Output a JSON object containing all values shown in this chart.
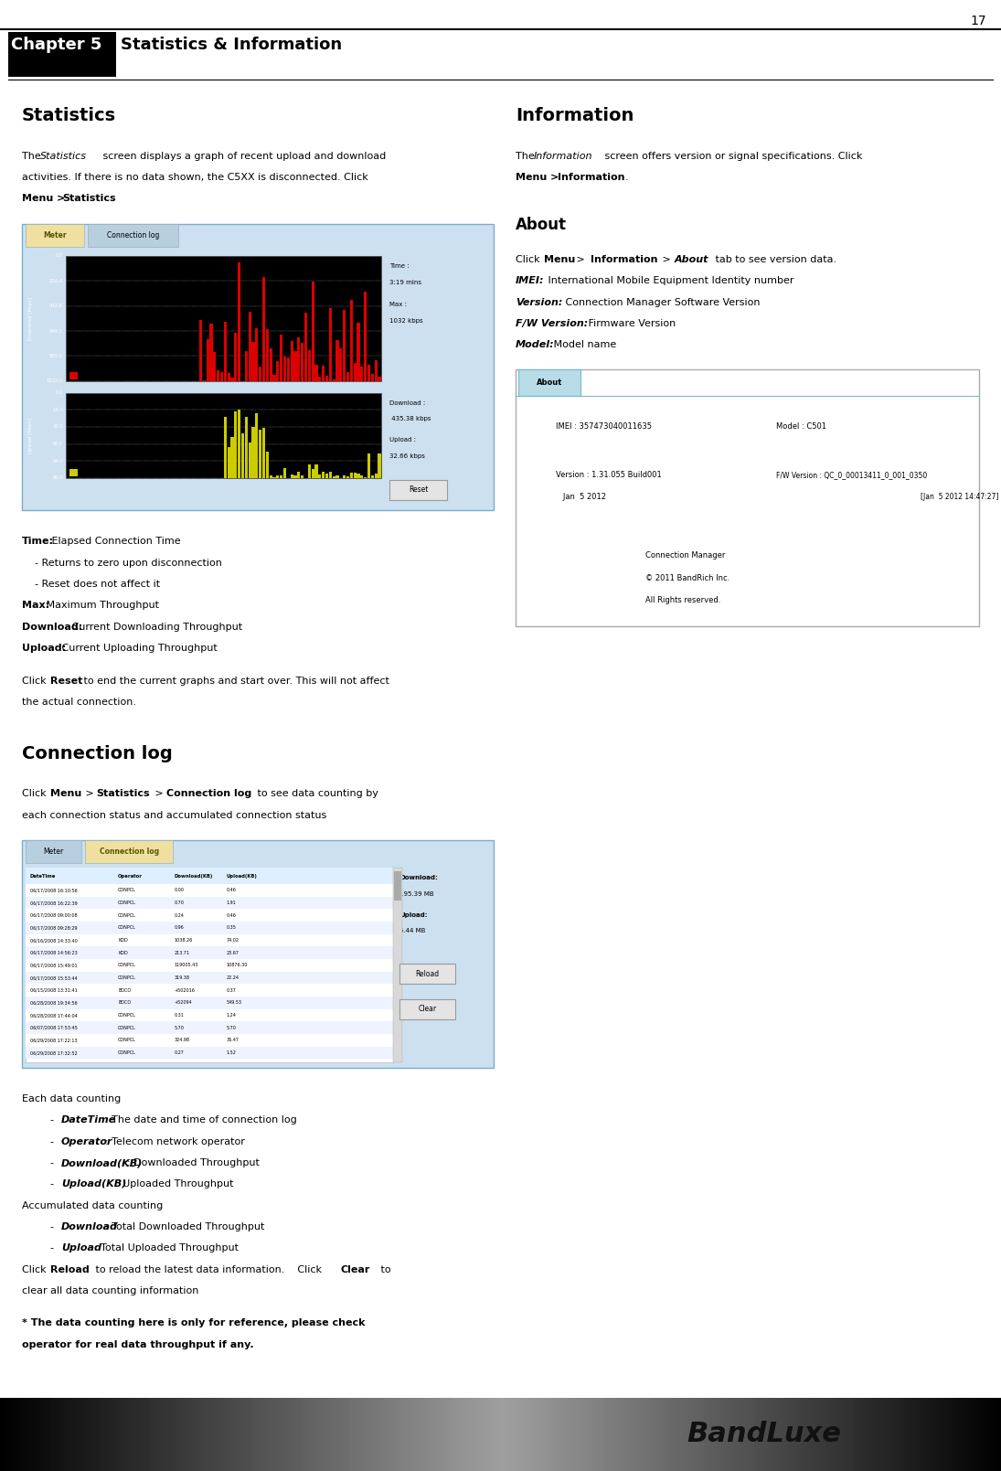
{
  "page_number": "17",
  "chapter_title": "Chapter 5",
  "chapter_title_rest": "Statistics & Information",
  "bg_color": "#ffffff",
  "statistics_heading": "Statistics",
  "statistics_intro_plain": "The ",
  "statistics_intro_italic": "Statistics",
  "statistics_intro_rest": " screen displays a graph of recent upload and download\nactivities. If there is no data shown, the C5XX is disconnected. Click\nMenu > Statistics.",
  "information_heading": "Information",
  "information_intro_plain": "The ",
  "information_intro_italic": "Information",
  "information_intro_rest": " screen offers version or signal specifications. Click\nMenu > ",
  "information_intro_bold": "Information",
  "information_intro_end": ".",
  "about_heading": "About",
  "about_intro_parts": [
    {
      "text": "Click ",
      "bold": false
    },
    {
      "text": "Menu",
      "bold": true
    },
    {
      "text": " > ",
      "bold": false
    },
    {
      "text": "Information",
      "bold": true
    },
    {
      "text": " > ",
      "bold": false
    },
    {
      "text": "About",
      "bold": true,
      "italic": true
    },
    {
      "text": " tab to see version data.",
      "bold": false
    }
  ],
  "about_items": [
    {
      "bold_text": "IMEI:",
      "rest": " International Mobile Equipment Identity number"
    },
    {
      "bold_text": "Version:",
      "rest": " Connection Manager Software Version"
    },
    {
      "bold_text": "F/W Version:",
      "rest": " Firmware Version"
    },
    {
      "bold_text": "Model:",
      "rest": " Model name"
    }
  ],
  "note_text": "* The data counting here is only for reference, please check\noperator for real data throughput if any.",
  "footer_text": "BandLuxe"
}
